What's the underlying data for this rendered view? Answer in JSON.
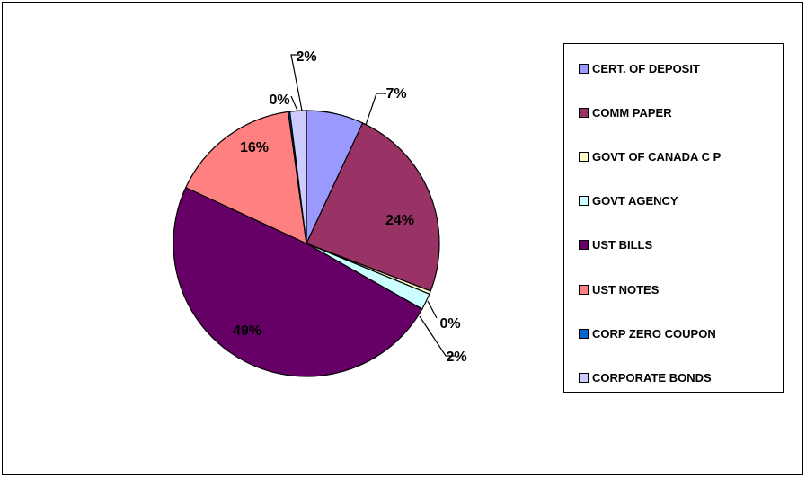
{
  "chart_data": {
    "type": "pie",
    "title": "",
    "legend_position": "right",
    "slices": [
      {
        "name": "CERT. OF DEPOSIT",
        "value": 7,
        "label": "7%",
        "color": "#9999FF"
      },
      {
        "name": "COMM PAPER",
        "value": 24,
        "label": "24%",
        "color": "#993366"
      },
      {
        "name": "GOVT OF CANADA C P",
        "value": 0.4,
        "label": "0%",
        "color": "#FFFFCC"
      },
      {
        "name": "GOVT AGENCY",
        "value": 2,
        "label": "2%",
        "color": "#CCFFFF"
      },
      {
        "name": "UST BILLS",
        "value": 49,
        "label": "49%",
        "color": "#660066"
      },
      {
        "name": "UST NOTES",
        "value": 16,
        "label": "16%",
        "color": "#FF8080"
      },
      {
        "name": "CORP ZERO COUPON",
        "value": 0.2,
        "label": "0%",
        "color": "#0066CC"
      },
      {
        "name": "CORPORATE BONDS",
        "value": 2,
        "label": "2%",
        "color": "#CCCCFF"
      }
    ]
  }
}
